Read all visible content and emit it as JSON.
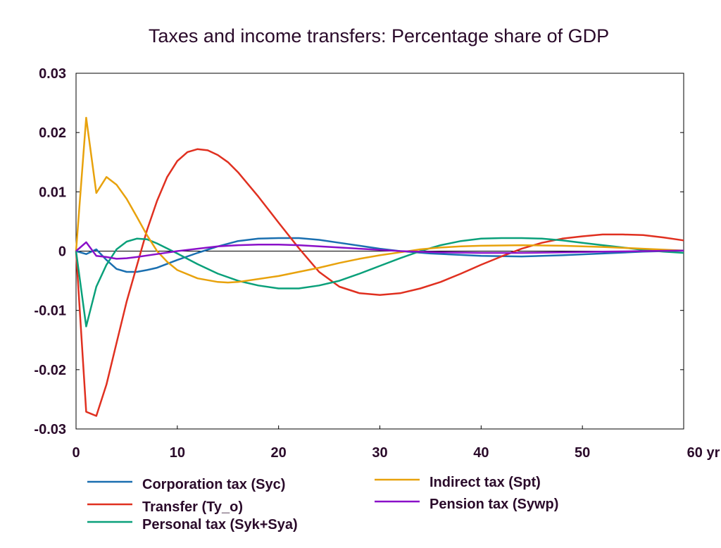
{
  "chart_data": {
    "type": "line",
    "title": "Taxes and income transfers: Percentage share of GDP",
    "xlabel": "",
    "ylabel": "",
    "xlim": [
      0,
      60
    ],
    "ylim": [
      -0.03,
      0.03
    ],
    "x_ticks": [
      "0",
      "10",
      "20",
      "30",
      "40",
      "50",
      "60 yr"
    ],
    "y_ticks": [
      "0.03",
      "0.02",
      "0.01",
      "0",
      "-0.01",
      "-0.02",
      "-0.03"
    ],
    "zero_line": true,
    "grid": false,
    "legend_position": "bottom",
    "series": [
      {
        "name": "Corporation tax (Syc)",
        "color": "#1a6fb0",
        "points": [
          [
            0,
            0
          ],
          [
            1,
            -0.0005
          ],
          [
            2,
            0.0003
          ],
          [
            3,
            -0.0015
          ],
          [
            4,
            -0.003
          ],
          [
            5,
            -0.0035
          ],
          [
            6,
            -0.0035
          ],
          [
            7,
            -0.0032
          ],
          [
            8,
            -0.0028
          ],
          [
            10,
            -0.0015
          ],
          [
            12,
            -0.0003
          ],
          [
            14,
            0.0008
          ],
          [
            16,
            0.0017
          ],
          [
            18,
            0.0021
          ],
          [
            20,
            0.0022
          ],
          [
            22,
            0.0022
          ],
          [
            24,
            0.0019
          ],
          [
            26,
            0.0014
          ],
          [
            28,
            0.0009
          ],
          [
            30,
            0.0004
          ],
          [
            32,
            0
          ],
          [
            35,
            -0.0004
          ],
          [
            40,
            -0.0008
          ],
          [
            44,
            -0.0009
          ],
          [
            48,
            -0.0007
          ],
          [
            52,
            -0.0004
          ],
          [
            56,
            -0.0001
          ],
          [
            60,
            0.0001
          ]
        ]
      },
      {
        "name": "Transfer (Ty_o)",
        "color": "#e03020",
        "points": [
          [
            0,
            0
          ],
          [
            1,
            -0.0271
          ],
          [
            2,
            -0.0278
          ],
          [
            3,
            -0.0225
          ],
          [
            4,
            -0.0155
          ],
          [
            5,
            -0.0085
          ],
          [
            6,
            -0.0025
          ],
          [
            7,
            0.0035
          ],
          [
            8,
            0.0085
          ],
          [
            9,
            0.0125
          ],
          [
            10,
            0.0152
          ],
          [
            11,
            0.0167
          ],
          [
            12,
            0.0172
          ],
          [
            13,
            0.017
          ],
          [
            14,
            0.0162
          ],
          [
            15,
            0.015
          ],
          [
            16,
            0.0133
          ],
          [
            18,
            0.0092
          ],
          [
            20,
            0.0048
          ],
          [
            22,
            0.0005
          ],
          [
            24,
            -0.0035
          ],
          [
            26,
            -0.006
          ],
          [
            28,
            -0.0071
          ],
          [
            30,
            -0.0074
          ],
          [
            32,
            -0.0071
          ],
          [
            34,
            -0.0063
          ],
          [
            36,
            -0.0052
          ],
          [
            38,
            -0.0038
          ],
          [
            40,
            -0.0023
          ],
          [
            42,
            -0.0009
          ],
          [
            44,
            0.0004
          ],
          [
            46,
            0.0014
          ],
          [
            48,
            0.0021
          ],
          [
            50,
            0.0025
          ],
          [
            52,
            0.0028
          ],
          [
            54,
            0.0028
          ],
          [
            56,
            0.0027
          ],
          [
            58,
            0.0023
          ],
          [
            60,
            0.0018
          ]
        ]
      },
      {
        "name": "Personal tax (Syk+Sya)",
        "color": "#0aa07a",
        "points": [
          [
            0,
            0
          ],
          [
            1,
            -0.0127
          ],
          [
            2,
            -0.006
          ],
          [
            3,
            -0.0023
          ],
          [
            4,
            0.0003
          ],
          [
            5,
            0.0016
          ],
          [
            6,
            0.0021
          ],
          [
            7,
            0.002
          ],
          [
            8,
            0.0013
          ],
          [
            10,
            -0.0004
          ],
          [
            12,
            -0.0022
          ],
          [
            14,
            -0.0038
          ],
          [
            16,
            -0.005
          ],
          [
            18,
            -0.0058
          ],
          [
            20,
            -0.0063
          ],
          [
            22,
            -0.0063
          ],
          [
            24,
            -0.0058
          ],
          [
            26,
            -0.005
          ],
          [
            28,
            -0.0038
          ],
          [
            30,
            -0.0025
          ],
          [
            32,
            -0.0012
          ],
          [
            34,
            0
          ],
          [
            36,
            0.001
          ],
          [
            38,
            0.0017
          ],
          [
            40,
            0.0021
          ],
          [
            42,
            0.0022
          ],
          [
            44,
            0.0022
          ],
          [
            46,
            0.0021
          ],
          [
            48,
            0.0018
          ],
          [
            50,
            0.0014
          ],
          [
            52,
            0.001
          ],
          [
            54,
            0.0006
          ],
          [
            56,
            0.0002
          ],
          [
            58,
            -0.0001
          ],
          [
            60,
            -0.0003
          ]
        ]
      },
      {
        "name": "Indirect tax (Spt)",
        "color": "#e8a20c",
        "points": [
          [
            0,
            0
          ],
          [
            1,
            0.0225
          ],
          [
            2,
            0.0098
          ],
          [
            3,
            0.0125
          ],
          [
            4,
            0.0112
          ],
          [
            5,
            0.0088
          ],
          [
            6,
            0.0058
          ],
          [
            7,
            0.0027
          ],
          [
            8,
            0
          ],
          [
            9,
            -0.0018
          ],
          [
            10,
            -0.0032
          ],
          [
            12,
            -0.0046
          ],
          [
            14,
            -0.0052
          ],
          [
            15,
            -0.0053
          ],
          [
            16,
            -0.0052
          ],
          [
            18,
            -0.0047
          ],
          [
            20,
            -0.0042
          ],
          [
            22,
            -0.0035
          ],
          [
            24,
            -0.0028
          ],
          [
            26,
            -0.002
          ],
          [
            28,
            -0.0013
          ],
          [
            30,
            -0.0007
          ],
          [
            32,
            -0.0002
          ],
          [
            34,
            0.0003
          ],
          [
            36,
            0.0006
          ],
          [
            38,
            0.0008
          ],
          [
            40,
            0.0009
          ],
          [
            44,
            0.001
          ],
          [
            48,
            0.0009
          ],
          [
            52,
            0.0007
          ],
          [
            56,
            0.0004
          ],
          [
            60,
            0.0001
          ]
        ]
      },
      {
        "name": "Pension tax (Sywp)",
        "color": "#8a10c8",
        "points": [
          [
            0,
            0
          ],
          [
            1,
            0.0015
          ],
          [
            2,
            -0.0008
          ],
          [
            3,
            -0.001
          ],
          [
            4,
            -0.0013
          ],
          [
            5,
            -0.0012
          ],
          [
            6,
            -0.001
          ],
          [
            8,
            -0.0005
          ],
          [
            10,
            0
          ],
          [
            12,
            0.0004
          ],
          [
            14,
            0.0008
          ],
          [
            16,
            0.001
          ],
          [
            18,
            0.0011
          ],
          [
            20,
            0.0011
          ],
          [
            22,
            0.001
          ],
          [
            24,
            0.0008
          ],
          [
            26,
            0.0006
          ],
          [
            28,
            0.0004
          ],
          [
            30,
            0.0002
          ],
          [
            32,
            0
          ],
          [
            36,
            -0.0002
          ],
          [
            40,
            -0.0003
          ],
          [
            44,
            -0.0003
          ],
          [
            48,
            -0.0002
          ],
          [
            52,
            -0.0001
          ],
          [
            56,
            0
          ],
          [
            60,
            0.0001
          ]
        ]
      }
    ]
  }
}
